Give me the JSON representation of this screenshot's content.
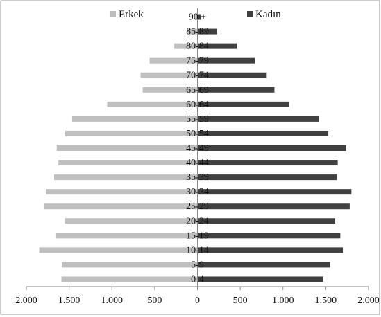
{
  "chart_data": {
    "type": "bar",
    "orientation": "horizontal",
    "categories": [
      "0-4",
      "5-9",
      "10-14",
      "15-19",
      "20-24",
      "25-29",
      "30-34",
      "35-39",
      "40-44",
      "45-49",
      "50-54",
      "55-59",
      "60-64",
      "65-69",
      "70-74",
      "75-79",
      "80-84",
      "85-89",
      "90 +"
    ],
    "series": [
      {
        "name": "Erkek",
        "color": "#bfbfbf",
        "side": "left",
        "values": [
          1590,
          1585,
          1850,
          1660,
          1550,
          1790,
          1770,
          1675,
          1625,
          1645,
          1545,
          1465,
          1055,
          640,
          665,
          560,
          270,
          120,
          30
        ]
      },
      {
        "name": "Kadın",
        "color": "#404040",
        "side": "right",
        "values": [
          1470,
          1550,
          1700,
          1670,
          1610,
          1780,
          1800,
          1630,
          1640,
          1740,
          1530,
          1420,
          1070,
          900,
          810,
          670,
          460,
          230,
          45
        ]
      }
    ],
    "xlim": [
      -2000,
      2000
    ],
    "x_ticks": [
      -2000,
      -1500,
      -1000,
      -500,
      0,
      500,
      1000,
      1500,
      2000
    ],
    "x_tick_labels": [
      "2.000",
      "1.500",
      "1.000",
      "500",
      "0",
      "500",
      "1.000",
      "1.500",
      "2.000"
    ],
    "legend_placement": "top",
    "grid": false,
    "title": "",
    "xlabel": "",
    "ylabel": ""
  }
}
